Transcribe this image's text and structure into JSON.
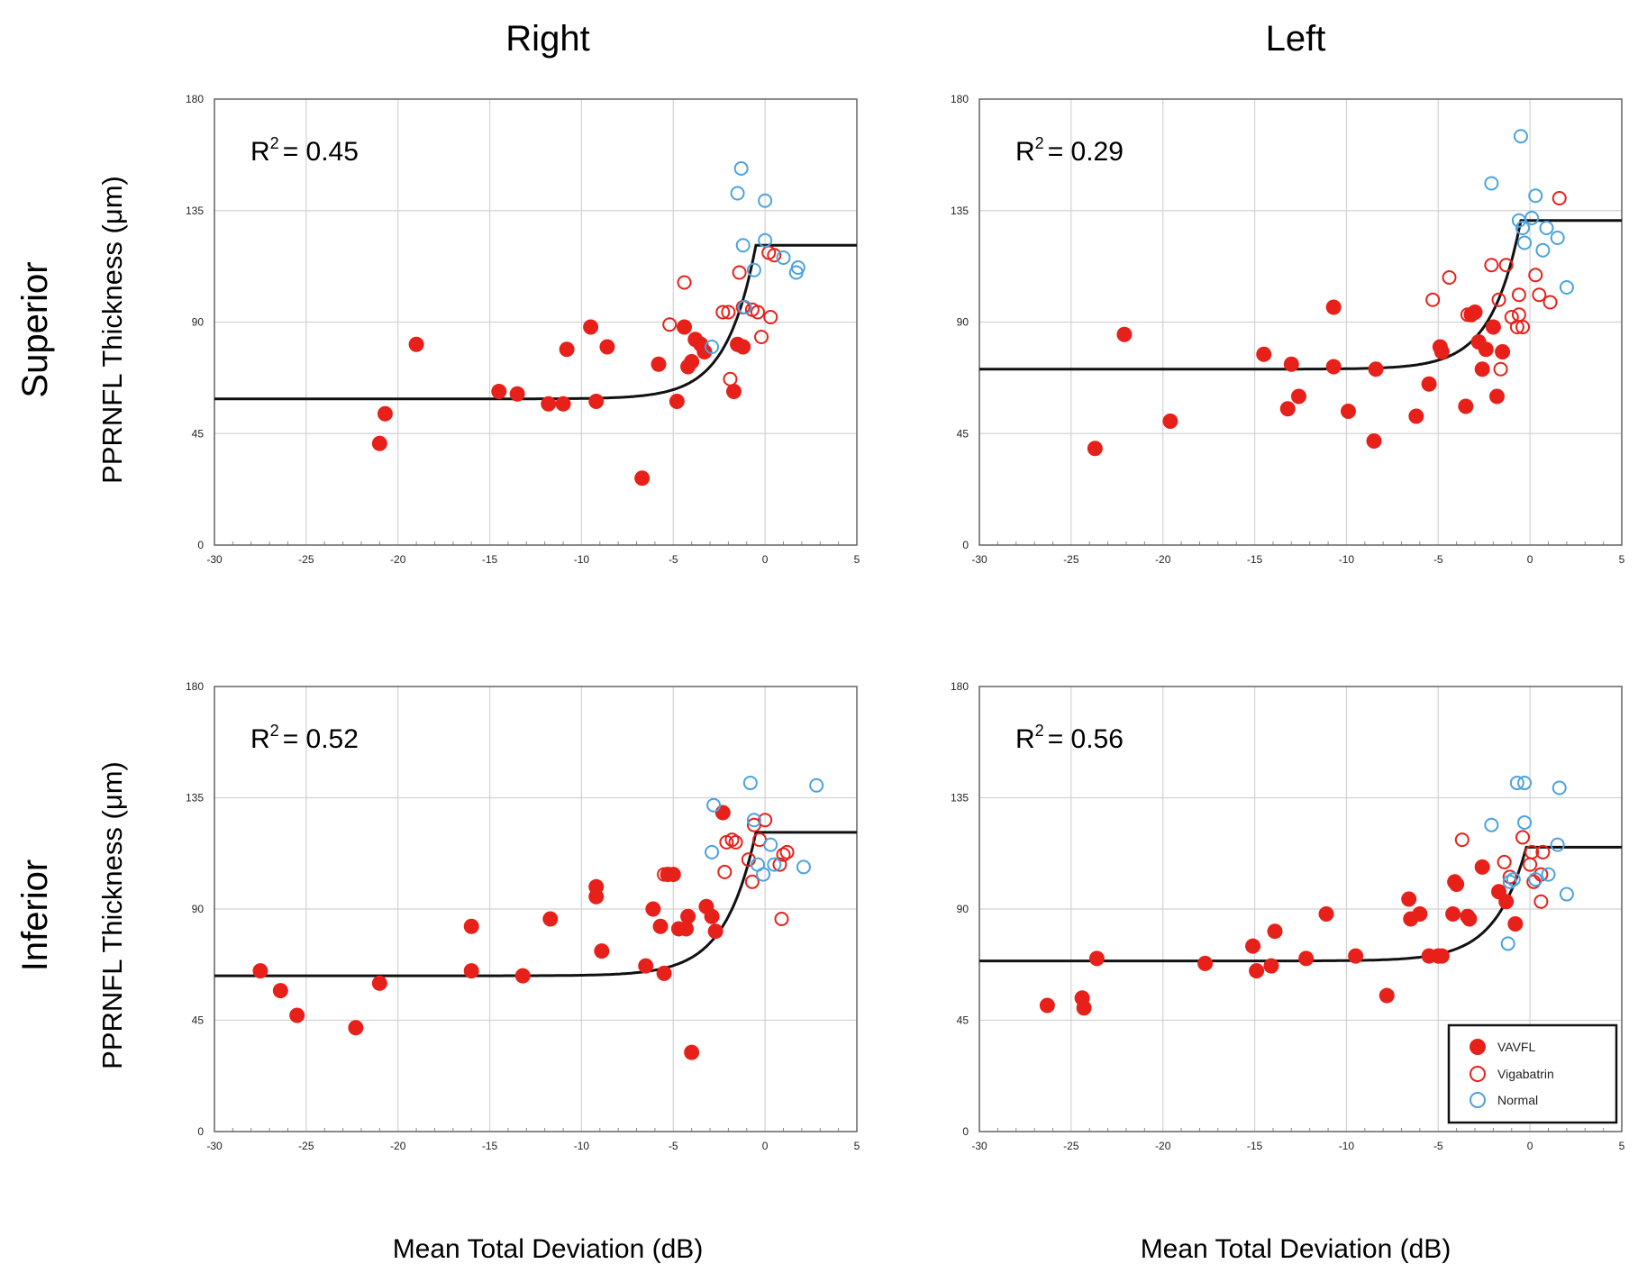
{
  "colors": {
    "vavfl": "#e8201a",
    "vigabatrin": "#e8201a",
    "normal": "#4aa3df",
    "fit": "#111111",
    "grid": "#d2d2d2"
  },
  "column_titles": [
    "Right",
    "Left"
  ],
  "row_titles": [
    "Superior",
    "Inferior"
  ],
  "ylabel": "PPRNFL Thickness (μm)",
  "xlabel": "Mean Total Deviation (dB)",
  "legend": {
    "placement": "bottom-right of Inferior-Left panel",
    "entries": [
      "VAVFL",
      "Vigabatrin",
      "Normal"
    ]
  },
  "chart_data": [
    {
      "type": "scatter",
      "panel": "Superior / Right",
      "annotation": {
        "prefix": "R",
        "sup": "2",
        "value": "= 0.45"
      },
      "xlim": [
        -30,
        5
      ],
      "ylim": [
        0,
        180
      ],
      "xticks": [
        -30,
        -25,
        -20,
        -15,
        -10,
        -5,
        0,
        5
      ],
      "yticks": [
        0,
        45,
        90,
        135,
        180
      ],
      "grid": true,
      "fit": {
        "floor": 59,
        "plateau": 121,
        "x_break": -0.5,
        "decay": 1.6
      },
      "series": [
        {
          "name": "VAVFL",
          "marker": "filled",
          "points": [
            [
              -21,
              41
            ],
            [
              -20.7,
              53
            ],
            [
              -19,
              81
            ],
            [
              -14.5,
              62
            ],
            [
              -13.5,
              61
            ],
            [
              -11.8,
              57
            ],
            [
              -11,
              57
            ],
            [
              -10.8,
              79
            ],
            [
              -9.5,
              88
            ],
            [
              -9.2,
              58
            ],
            [
              -8.6,
              80
            ],
            [
              -6.7,
              27
            ],
            [
              -5.8,
              73
            ],
            [
              -4.8,
              58
            ],
            [
              -4.4,
              88
            ],
            [
              -4.2,
              72
            ],
            [
              -4,
              74
            ],
            [
              -3.8,
              83
            ],
            [
              -3.5,
              81
            ],
            [
              -3.3,
              78
            ],
            [
              -1.7,
              62
            ],
            [
              -1.5,
              81
            ],
            [
              -1.2,
              80
            ]
          ]
        },
        {
          "name": "Vigabatrin",
          "marker": "open",
          "points": [
            [
              -5.2,
              89
            ],
            [
              -4.4,
              106
            ],
            [
              -2.3,
              94
            ],
            [
              -2,
              94
            ],
            [
              -1.9,
              67
            ],
            [
              -1.4,
              110
            ],
            [
              -0.7,
              95
            ],
            [
              -0.4,
              94
            ],
            [
              -0.2,
              84
            ],
            [
              0.2,
              118
            ],
            [
              0.3,
              92
            ],
            [
              0.5,
              117
            ],
            [
              -1.2,
              96
            ]
          ]
        },
        {
          "name": "Normal",
          "marker": "open",
          "points": [
            [
              -1.3,
              152
            ],
            [
              -1.5,
              142
            ],
            [
              0,
              139
            ],
            [
              -1.2,
              121
            ],
            [
              0,
              123
            ],
            [
              -0.6,
              111
            ],
            [
              1,
              116
            ],
            [
              1.8,
              112
            ],
            [
              1.7,
              110
            ],
            [
              -1.1,
              96
            ],
            [
              -2.9,
              80
            ]
          ]
        }
      ]
    },
    {
      "type": "scatter",
      "panel": "Superior / Left",
      "annotation": {
        "prefix": "R",
        "sup": "2",
        "value": "= 0.29"
      },
      "xlim": [
        -30,
        5
      ],
      "ylim": [
        0,
        180
      ],
      "xticks": [
        -30,
        -25,
        -20,
        -15,
        -10,
        -5,
        0,
        5
      ],
      "yticks": [
        0,
        45,
        90,
        135,
        180
      ],
      "grid": true,
      "fit": {
        "floor": 71,
        "plateau": 131,
        "x_break": -0.5,
        "decay": 1.6
      },
      "series": [
        {
          "name": "VAVFL",
          "marker": "filled",
          "points": [
            [
              -23.7,
              39
            ],
            [
              -22.1,
              85
            ],
            [
              -19.6,
              50
            ],
            [
              -14.5,
              77
            ],
            [
              -13.2,
              55
            ],
            [
              -13,
              73
            ],
            [
              -12.6,
              60
            ],
            [
              -10.7,
              96
            ],
            [
              -10.7,
              72
            ],
            [
              -9.9,
              54
            ],
            [
              -8.4,
              71
            ],
            [
              -8.5,
              42
            ],
            [
              -6.2,
              52
            ],
            [
              -5.5,
              65
            ],
            [
              -4.9,
              80
            ],
            [
              -4.8,
              78
            ],
            [
              -3.5,
              56
            ],
            [
              -3.2,
              93
            ],
            [
              -3,
              94
            ],
            [
              -2.8,
              82
            ],
            [
              -2.6,
              71
            ],
            [
              -2.4,
              79
            ],
            [
              -2,
              88
            ],
            [
              -1.8,
              60
            ],
            [
              -1.5,
              78
            ]
          ]
        },
        {
          "name": "Vigabatrin",
          "marker": "open",
          "points": [
            [
              -5.3,
              99
            ],
            [
              -4.4,
              108
            ],
            [
              -3.4,
              93
            ],
            [
              -2.1,
              113
            ],
            [
              -1.7,
              99
            ],
            [
              -1.3,
              113
            ],
            [
              -1,
              92
            ],
            [
              -0.7,
              88
            ],
            [
              -0.6,
              101
            ],
            [
              -0.6,
              93
            ],
            [
              -0.4,
              88
            ],
            [
              0.3,
              109
            ],
            [
              0.5,
              101
            ],
            [
              1.1,
              98
            ],
            [
              1.6,
              140
            ],
            [
              -1.6,
              71
            ]
          ]
        },
        {
          "name": "Normal",
          "marker": "open",
          "points": [
            [
              -0.5,
              165
            ],
            [
              -2.1,
              146
            ],
            [
              0.3,
              141
            ],
            [
              -0.6,
              131
            ],
            [
              -0.3,
              122
            ],
            [
              0.1,
              132
            ],
            [
              0.7,
              119
            ],
            [
              0.9,
              128
            ],
            [
              1.5,
              124
            ],
            [
              2,
              104
            ],
            [
              -0.4,
              128
            ]
          ]
        }
      ]
    },
    {
      "type": "scatter",
      "panel": "Inferior / Right",
      "annotation": {
        "prefix": "R",
        "sup": "2",
        "value": "= 0.52"
      },
      "xlim": [
        -30,
        5
      ],
      "ylim": [
        0,
        180
      ],
      "xticks": [
        -30,
        -25,
        -20,
        -15,
        -10,
        -5,
        0,
        5
      ],
      "yticks": [
        0,
        45,
        90,
        135,
        180
      ],
      "grid": true,
      "fit": {
        "floor": 63,
        "plateau": 121,
        "x_break": -0.5,
        "decay": 1.7
      },
      "series": [
        {
          "name": "VAVFL",
          "marker": "filled",
          "points": [
            [
              -27.5,
              65
            ],
            [
              -26.4,
              57
            ],
            [
              -25.5,
              47
            ],
            [
              -22.3,
              42
            ],
            [
              -21,
              60
            ],
            [
              -16,
              83
            ],
            [
              -16,
              65
            ],
            [
              -13.2,
              63
            ],
            [
              -11.7,
              86
            ],
            [
              -9.2,
              99
            ],
            [
              -9.2,
              95
            ],
            [
              -8.9,
              73
            ],
            [
              -6.5,
              67
            ],
            [
              -6.1,
              90
            ],
            [
              -5.7,
              83
            ],
            [
              -5.5,
              64
            ],
            [
              -5.3,
              104
            ],
            [
              -5,
              104
            ],
            [
              -4.7,
              82
            ],
            [
              -4.3,
              82
            ],
            [
              -4.2,
              87
            ],
            [
              -4,
              32
            ],
            [
              -3.2,
              91
            ],
            [
              -2.9,
              87
            ],
            [
              -2.7,
              81
            ],
            [
              -2.3,
              129
            ]
          ]
        },
        {
          "name": "Vigabatrin",
          "marker": "open",
          "points": [
            [
              -5.5,
              104
            ],
            [
              -2.1,
              117
            ],
            [
              -2.2,
              105
            ],
            [
              -1.8,
              118
            ],
            [
              -1.6,
              117
            ],
            [
              -0.9,
              110
            ],
            [
              -0.7,
              101
            ],
            [
              -0.6,
              124
            ],
            [
              -0.3,
              118
            ],
            [
              0,
              126
            ],
            [
              0.8,
              108
            ],
            [
              1,
              112
            ],
            [
              1.2,
              113
            ],
            [
              0.9,
              86
            ]
          ]
        },
        {
          "name": "Normal",
          "marker": "open",
          "points": [
            [
              -2.8,
              132
            ],
            [
              -2.9,
              113
            ],
            [
              -0.8,
              141
            ],
            [
              -0.6,
              126
            ],
            [
              -0.1,
              104
            ],
            [
              0.3,
              116
            ],
            [
              0.5,
              108
            ],
            [
              2.1,
              107
            ],
            [
              2.8,
              140
            ],
            [
              -0.4,
              108
            ]
          ]
        }
      ]
    },
    {
      "type": "scatter",
      "panel": "Inferior / Left",
      "annotation": {
        "prefix": "R",
        "sup": "2",
        "value": "= 0.56"
      },
      "xlim": [
        -30,
        5
      ],
      "ylim": [
        0,
        180
      ],
      "xticks": [
        -30,
        -25,
        -20,
        -15,
        -10,
        -5,
        0,
        5
      ],
      "yticks": [
        0,
        45,
        90,
        135,
        180
      ],
      "grid": true,
      "fit": {
        "floor": 69,
        "plateau": 115,
        "x_break": -0.2,
        "decay": 1.7
      },
      "series": [
        {
          "name": "VAVFL",
          "marker": "filled",
          "points": [
            [
              -26.3,
              51
            ],
            [
              -24.4,
              54
            ],
            [
              -24.3,
              50
            ],
            [
              -23.6,
              70
            ],
            [
              -17.7,
              68
            ],
            [
              -15.1,
              75
            ],
            [
              -14.9,
              65
            ],
            [
              -14.1,
              67
            ],
            [
              -13.9,
              81
            ],
            [
              -12.2,
              70
            ],
            [
              -11.1,
              88
            ],
            [
              -9.5,
              71
            ],
            [
              -7.8,
              55
            ],
            [
              -6.6,
              94
            ],
            [
              -6.5,
              86
            ],
            [
              -6,
              88
            ],
            [
              -5.5,
              71
            ],
            [
              -5,
              71
            ],
            [
              -4.8,
              71
            ],
            [
              -4.2,
              88
            ],
            [
              -4.1,
              101
            ],
            [
              -4,
              100
            ],
            [
              -3.4,
              87
            ],
            [
              -3.3,
              86
            ],
            [
              -2.6,
              107
            ],
            [
              -1.7,
              97
            ],
            [
              -1.3,
              93
            ],
            [
              -0.8,
              84
            ]
          ]
        },
        {
          "name": "Vigabatrin",
          "marker": "open",
          "points": [
            [
              -3.7,
              118
            ],
            [
              -1.4,
              109
            ],
            [
              -0.4,
              119
            ],
            [
              0,
              108
            ],
            [
              0.1,
              113
            ],
            [
              0.6,
              93
            ],
            [
              0.6,
              104
            ],
            [
              0.7,
              113
            ],
            [
              -1.1,
              103
            ],
            [
              0.2,
              101
            ]
          ]
        },
        {
          "name": "Normal",
          "marker": "open",
          "points": [
            [
              -0.7,
              141
            ],
            [
              -0.3,
              141
            ],
            [
              1.6,
              139
            ],
            [
              -2.1,
              124
            ],
            [
              -0.3,
              125
            ],
            [
              1.5,
              116
            ],
            [
              1,
              104
            ],
            [
              2,
              96
            ],
            [
              -1.2,
              76
            ],
            [
              -1.1,
              101
            ],
            [
              -0.9,
              102
            ],
            [
              0.3,
              102
            ]
          ]
        }
      ]
    }
  ]
}
